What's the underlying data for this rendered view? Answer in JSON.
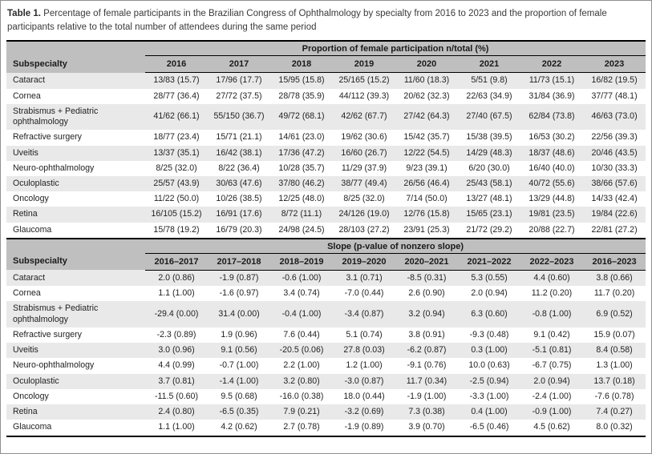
{
  "caption": {
    "label": "Table 1.",
    "text": "Percentage of female participants in the Brazilian Congress of Ophthalmology by specialty from 2016 to 2023 and the proportion of female participants relative to the total number of attendees during the same period"
  },
  "colors": {
    "header_band": "#bfbfbf",
    "stripe_row": "#e9e9e9",
    "rule": "#000000"
  },
  "participation": {
    "group_header": "Proportion of female participation n/total (%)",
    "col_header": "Subspecialty",
    "columns": [
      "2016",
      "2017",
      "2018",
      "2019",
      "2020",
      "2021",
      "2022",
      "2023"
    ],
    "rows": [
      {
        "label": "Cataract",
        "values": [
          "13/83 (15.7)",
          "17/96 (17.7)",
          "15/95 (15.8)",
          "25/165 (15.2)",
          "11/60 (18.3)",
          "5/51 (9.8)",
          "11/73 (15.1)",
          "16/82 (19.5)"
        ]
      },
      {
        "label": "Cornea",
        "values": [
          "28/77 (36.4)",
          "27/72 (37.5)",
          "28/78 (35.9)",
          "44/112 (39.3)",
          "20/62 (32.3)",
          "22/63 (34.9)",
          "31/84 (36.9)",
          "37/77 (48.1)"
        ]
      },
      {
        "label": "Strabismus + Pediatric ophthalmology",
        "values": [
          "41/62 (66.1)",
          "55/150 (36.7)",
          "49/72 (68.1)",
          "42/62 (67.7)",
          "27/42 (64.3)",
          "27/40 (67.5)",
          "62/84 (73.8)",
          "46/63 (73.0)"
        ]
      },
      {
        "label": "Refractive surgery",
        "values": [
          "18/77 (23.4)",
          "15/71 (21.1)",
          "14/61 (23.0)",
          "19/62 (30.6)",
          "15/42 (35.7)",
          "15/38 (39.5)",
          "16/53 (30.2)",
          "22/56 (39.3)"
        ]
      },
      {
        "label": "Uveitis",
        "values": [
          "13/37 (35.1)",
          "16/42 (38.1)",
          "17/36 (47.2)",
          "16/60 (26.7)",
          "12/22 (54.5)",
          "14/29 (48.3)",
          "18/37 (48.6)",
          "20/46 (43.5)"
        ]
      },
      {
        "label": "Neuro-ophthalmology",
        "values": [
          "8/25 (32.0)",
          "8/22 (36.4)",
          "10/28 (35.7)",
          "11/29 (37.9)",
          "9/23 (39.1)",
          "6/20 (30.0)",
          "16/40 (40.0)",
          "10/30 (33.3)"
        ]
      },
      {
        "label": "Oculoplastic",
        "values": [
          "25/57 (43.9)",
          "30/63 (47.6)",
          "37/80 (46.2)",
          "38/77 (49.4)",
          "26/56 (46.4)",
          "25/43 (58.1)",
          "40/72 (55.6)",
          "38/66 (57.6)"
        ]
      },
      {
        "label": "Oncology",
        "values": [
          "11/22 (50.0)",
          "10/26 (38.5)",
          "12/25 (48.0)",
          "8/25 (32.0)",
          "7/14 (50.0)",
          "13/27 (48.1)",
          "13/29 (44.8)",
          "14/33 (42.4)"
        ]
      },
      {
        "label": "Retina",
        "values": [
          "16/105 (15.2)",
          "16/91 (17.6)",
          "8/72 (11.1)",
          "24/126 (19.0)",
          "12/76 (15.8)",
          "15/65 (23.1)",
          "19/81 (23.5)",
          "19/84 (22.6)"
        ]
      },
      {
        "label": "Glaucoma",
        "values": [
          "15/78 (19.2)",
          "16/79 (20.3)",
          "24/98 (24.5)",
          "28/103 (27.2)",
          "23/91 (25.3)",
          "21/72 (29.2)",
          "20/88 (22.7)",
          "22/81 (27.2)"
        ]
      }
    ]
  },
  "slope": {
    "group_header": "Slope (p-value of nonzero slope)",
    "col_header": "Subspecialty",
    "columns": [
      "2016–2017",
      "2017–2018",
      "2018–2019",
      "2019–2020",
      "2020–2021",
      "2021–2022",
      "2022–2023",
      "2016–2023"
    ],
    "rows": [
      {
        "label": "Cataract",
        "values": [
          "2.0 (0.86)",
          "-1.9 (0.87)",
          "-0.6 (1.00)",
          "3.1 (0.71)",
          "-8.5 (0.31)",
          "5.3 (0.55)",
          "4.4 (0.60)",
          "3.8 (0.66)"
        ]
      },
      {
        "label": "Cornea",
        "values": [
          "1.1 (1.00)",
          "-1.6 (0.97)",
          "3.4 (0.74)",
          "-7.0 (0.44)",
          "2.6 (0.90)",
          "2.0 (0.94)",
          "11.2 (0.20)",
          "11.7 (0.20)"
        ]
      },
      {
        "label": "Strabismus + Pediatric ophthalmology",
        "values": [
          "-29.4 (0.00)",
          "31.4 (0.00)",
          "-0.4 (1.00)",
          "-3.4 (0.87)",
          "3.2 (0.94)",
          "6.3 (0.60)",
          "-0.8 (1.00)",
          "6.9 (0.52)"
        ]
      },
      {
        "label": "Refractive surgery",
        "values": [
          "-2.3 (0.89)",
          "1.9 (0.96)",
          "7.6 (0.44)",
          "5.1 (0.74)",
          "3.8 (0.91)",
          "-9.3 (0.48)",
          "9.1 (0.42)",
          "15.9 (0.07)"
        ]
      },
      {
        "label": "Uveitis",
        "values": [
          "3.0 (0.96)",
          "9.1 (0.56)",
          "-20.5 (0.06)",
          "27.8 (0.03)",
          "-6.2 (0.87)",
          "0.3 (1.00)",
          "-5.1 (0.81)",
          "8.4 (0.58)"
        ]
      },
      {
        "label": "Neuro-ophthalmology",
        "values": [
          "4.4 (0.99)",
          "-0.7 (1.00)",
          "2.2 (1.00)",
          "1.2 (1.00)",
          "-9.1 (0.76)",
          "10.0 (0.63)",
          "-6.7 (0.75)",
          "1.3 (1.00)"
        ]
      },
      {
        "label": "Oculoplastic",
        "values": [
          "3.7 (0.81)",
          "-1.4 (1.00)",
          "3.2 (0.80)",
          "-3.0 (0.87)",
          "11.7 (0.34)",
          "-2.5 (0.94)",
          "2.0 (0.94)",
          "13.7 (0.18)"
        ]
      },
      {
        "label": "Oncology",
        "values": [
          "-11.5 (0.60)",
          "9.5 (0.68)",
          "-16.0 (0.38)",
          "18.0 (0.44)",
          "-1.9 (1.00)",
          "-3.3 (1.00)",
          "-2.4 (1.00)",
          "-7.6 (0.78)"
        ]
      },
      {
        "label": "Retina",
        "values": [
          "2.4 (0.80)",
          "-6.5 (0.35)",
          "7.9 (0.21)",
          "-3.2 (0.69)",
          "7.3 (0.38)",
          "0.4 (1.00)",
          "-0.9 (1.00)",
          "7.4 (0.27)"
        ]
      },
      {
        "label": "Glaucoma",
        "values": [
          "1.1 (1.00)",
          "4.2 (0.62)",
          "2.7 (0.78)",
          "-1.9 (0.89)",
          "3.9 (0.70)",
          "-6.5 (0.46)",
          "4.5 (0.62)",
          "8.0 (0.32)"
        ]
      }
    ]
  }
}
